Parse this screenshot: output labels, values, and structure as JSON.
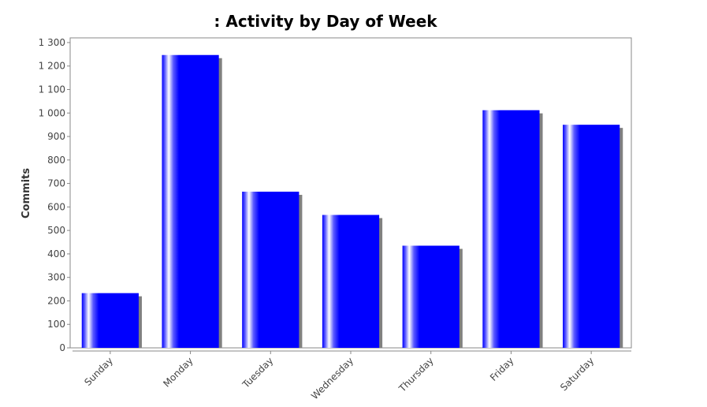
{
  "chart_data": {
    "type": "bar",
    "title": ": Activity by Day of Week",
    "xlabel": "",
    "ylabel": "Commits",
    "categories": [
      "Sunday",
      "Monday",
      "Tuesday",
      "Wednesday",
      "Thursday",
      "Friday",
      "Saturday"
    ],
    "values": [
      233,
      1247,
      665,
      566,
      435,
      1012,
      950
    ],
    "ylim": [
      0,
      1320
    ],
    "yticks": [
      {
        "value": 0,
        "label": "0"
      },
      {
        "value": 100,
        "label": "100"
      },
      {
        "value": 200,
        "label": "200"
      },
      {
        "value": 300,
        "label": "300"
      },
      {
        "value": 400,
        "label": "400"
      },
      {
        "value": 500,
        "label": "500"
      },
      {
        "value": 600,
        "label": "600"
      },
      {
        "value": 700,
        "label": "700"
      },
      {
        "value": 800,
        "label": "800"
      },
      {
        "value": 900,
        "label": "900"
      },
      {
        "value": 1000,
        "label": "1 000"
      },
      {
        "value": 1100,
        "label": "1 100"
      },
      {
        "value": 1200,
        "label": "1 200"
      },
      {
        "value": 1300,
        "label": "1 300"
      }
    ],
    "grid": false,
    "legend": "none",
    "colors": {
      "bar": "#0000ff",
      "bar_highlight": "#ffffff",
      "shadow": "#808080",
      "axis": "#888888",
      "plot_border": "#888888"
    }
  }
}
